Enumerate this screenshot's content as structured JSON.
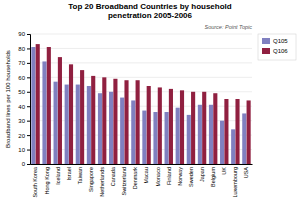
{
  "chart_data": {
    "type": "bar",
    "title": "Top 20 Broadband Countries by household\npenetration 2005-2006",
    "y_label": "Broadband lines per 100 households",
    "annotations": [
      "Source: Point Topic"
    ],
    "categories": [
      "South Korea",
      "Hong Kong",
      "Iceland",
      "Israel",
      "Taiwan",
      "Singapore",
      "Netherlands",
      "Canada",
      "Switzerland",
      "Denmark",
      "Macau",
      "Monaco",
      "Finland",
      "Norway",
      "Sweden",
      "Japan",
      "Belgium",
      "UK",
      "Luxembourg",
      "USA"
    ],
    "series": [
      {
        "name": "Q105",
        "color": "#8080c0",
        "values": [
          81,
          71,
          57,
          55,
          55,
          54,
          49,
          50,
          46,
          44,
          37,
          36,
          36,
          39,
          34,
          41,
          41,
          30,
          24,
          35
        ]
      },
      {
        "name": "Q106",
        "color": "#902040",
        "values": [
          83,
          81,
          74,
          69,
          65,
          61,
          60,
          59,
          58,
          58,
          54,
          53,
          52,
          51,
          50,
          50,
          49,
          45,
          45,
          44
        ]
      }
    ],
    "ylim": [
      0,
      90
    ],
    "yticks": [
      0,
      10,
      20,
      30,
      40,
      50,
      60,
      70,
      80,
      90
    ],
    "grid": true,
    "legend": "right"
  }
}
